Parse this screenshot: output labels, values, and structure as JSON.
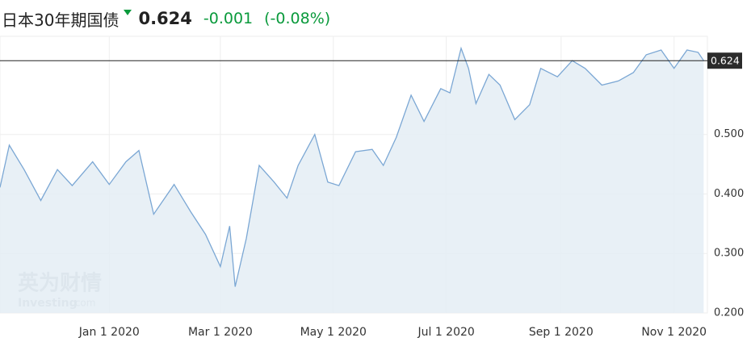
{
  "header": {
    "title": "日本30年期国债",
    "price": "0.624",
    "change": "-0.001",
    "change_pct": "(-0.08%)"
  },
  "chart_data": {
    "type": "area",
    "x": [
      "2019-11-03",
      "2019-11-08",
      "2019-11-16",
      "2019-11-25",
      "2019-12-04",
      "2019-12-12",
      "2019-12-23",
      "2020-01-01",
      "2020-01-10",
      "2020-01-17",
      "2020-01-25",
      "2020-02-05",
      "2020-02-14",
      "2020-02-22",
      "2020-03-01",
      "2020-03-06",
      "2020-03-09",
      "2020-03-15",
      "2020-03-22",
      "2020-03-30",
      "2020-04-06",
      "2020-04-12",
      "2020-04-21",
      "2020-04-28",
      "2020-05-04",
      "2020-05-13",
      "2020-05-22",
      "2020-05-28",
      "2020-06-04",
      "2020-06-12",
      "2020-06-19",
      "2020-06-28",
      "2020-07-03",
      "2020-07-09",
      "2020-07-13",
      "2020-07-17",
      "2020-07-24",
      "2020-07-30",
      "2020-08-07",
      "2020-08-15",
      "2020-08-21",
      "2020-08-30",
      "2020-09-07",
      "2020-09-14",
      "2020-09-23",
      "2020-10-02",
      "2020-10-10",
      "2020-10-17",
      "2020-10-25",
      "2020-11-01",
      "2020-11-08",
      "2020-11-14",
      "2020-11-17"
    ],
    "values": [
      0.411,
      0.482,
      0.441,
      0.389,
      0.441,
      0.414,
      0.454,
      0.416,
      0.454,
      0.473,
      0.366,
      0.416,
      0.37,
      0.332,
      0.278,
      0.346,
      0.244,
      0.325,
      0.448,
      0.42,
      0.393,
      0.448,
      0.5,
      0.42,
      0.414,
      0.471,
      0.475,
      0.448,
      0.495,
      0.566,
      0.522,
      0.577,
      0.57,
      0.645,
      0.611,
      0.552,
      0.601,
      0.583,
      0.525,
      0.55,
      0.611,
      0.597,
      0.624,
      0.611,
      0.583,
      0.59,
      0.604,
      0.634,
      0.642,
      0.611,
      0.642,
      0.638,
      0.624
    ],
    "color": "#7ba7d4",
    "xlim": [
      "2019-11-03",
      "2020-11-19"
    ],
    "xticks": [
      {
        "value": "2020-01-01",
        "label": "Jan 1 2020"
      },
      {
        "value": "2020-03-01",
        "label": "Mar 1 2020"
      },
      {
        "value": "2020-05-01",
        "label": "May 1 2020"
      },
      {
        "value": "2020-07-01",
        "label": "Jul 1 2020"
      },
      {
        "value": "2020-09-01",
        "label": "Sep 1 2020"
      },
      {
        "value": "2020-11-01",
        "label": "Nov 1 2020"
      }
    ],
    "ylim": [
      0.2,
      0.665
    ],
    "yticks": [
      {
        "value": 0.2,
        "label": "0.200"
      },
      {
        "value": 0.3,
        "label": "0.300"
      },
      {
        "value": 0.4,
        "label": "0.400"
      },
      {
        "value": 0.5,
        "label": "0.500"
      }
    ],
    "current_value": {
      "value": 0.624,
      "label": "0.624"
    },
    "watermark": [
      "英为财情",
      "Investing",
      ".com"
    ],
    "grid": true
  }
}
